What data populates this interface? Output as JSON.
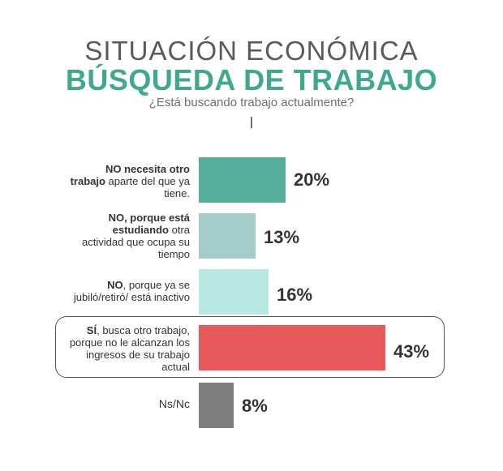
{
  "header": {
    "title_top": "SITUACIÓN ECONÓMICA",
    "title_main": "BÚSQUEDA DE TRABAJO",
    "question": "¿Está buscando trabajo actualmente?"
  },
  "colors": {
    "bar_1": "#55ae9b",
    "bar_2": "#a4ccc8",
    "bar_3": "#b8e8e3",
    "bar_4": "#e8595b",
    "bar_5": "#7e7e7e",
    "title_accent": "#3fa88f"
  },
  "chart_data": {
    "type": "bar",
    "orientation": "horizontal",
    "title": "BÚSQUEDA DE TRABAJO",
    "categories": [
      "NO necesita otro trabajo aparte del que ya tiene.",
      "NO, porque está estudiando otra actividad que ocupa su tiempo",
      "NO, porque ya se jubiló/retiró/ está inactivo",
      "SÍ, busca otro trabajo, porque no le alcanzan los ingresos de su trabajo actual",
      "Ns/Nc"
    ],
    "values": [
      20,
      13,
      16,
      43,
      8
    ],
    "value_labels": [
      "20%",
      "13%",
      "16%",
      "43%",
      "8%"
    ],
    "highlighted_category": "SÍ, busca otro trabajo, porque no le alcanzan los ingresos de su trabajo actual",
    "grid": false
  },
  "labels": {
    "row1": {
      "bold": "NO necesita otro trabajo",
      "rest": " aparte del que ya tiene."
    },
    "row2": {
      "bold": "NO, porque está estudiando",
      "rest": " otra actividad que ocupa su tiempo"
    },
    "row3": {
      "bold": "NO",
      "rest": ", porque ya se jubiló/retiró/ está inactivo"
    },
    "row4": {
      "bold": "SÍ",
      "rest": ", busca otro trabajo, porque no le alcanzan los ingresos de su trabajo actual"
    },
    "row5": {
      "text": "Ns/Nc"
    }
  }
}
